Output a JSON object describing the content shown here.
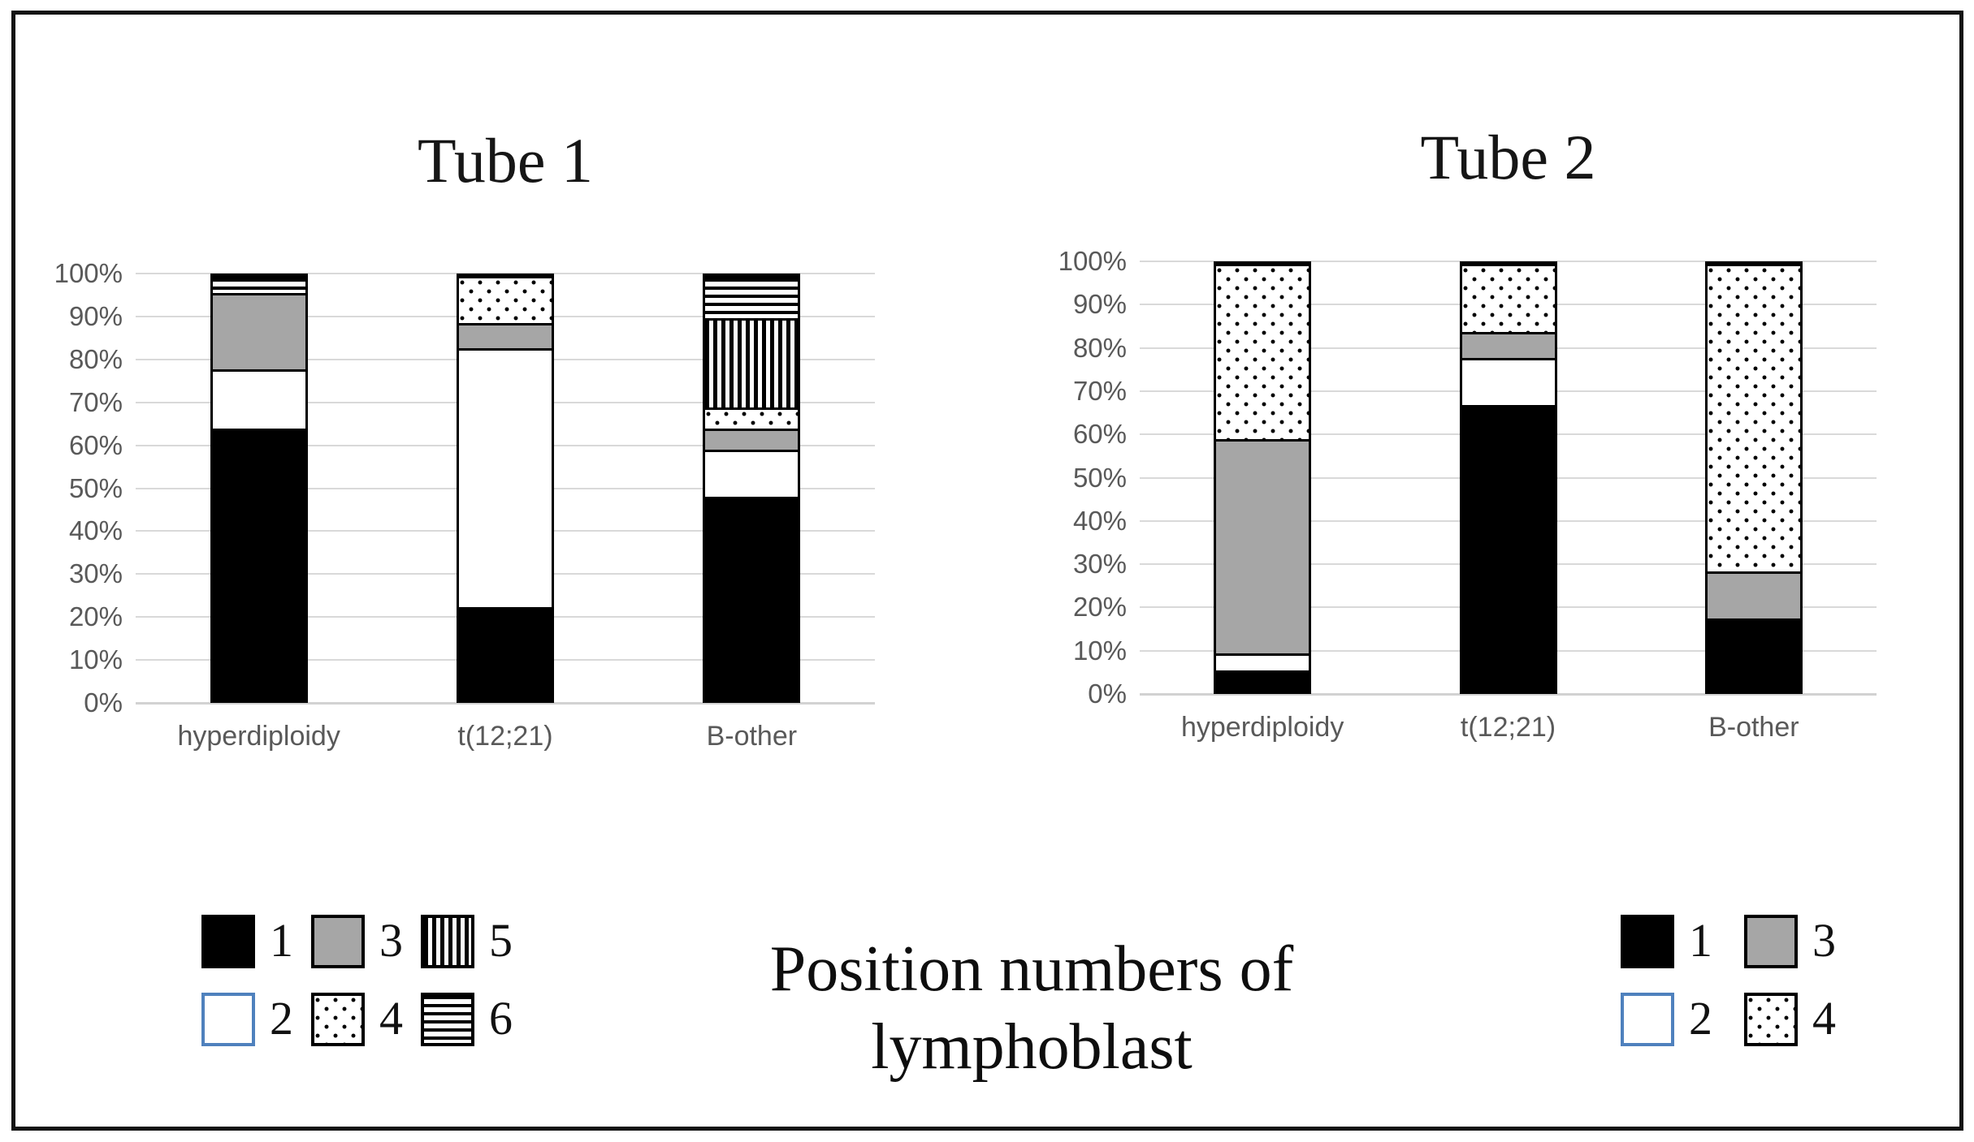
{
  "figure": {
    "caption": "Position numbers of\nlymphoblast"
  },
  "colors": {
    "bar_outline": "#000000",
    "gray_fill": "#a6a6a6",
    "gridline": "#d9d9d9",
    "axis_text": "#595959",
    "legend_white_swatch_border": "#4f81bd",
    "frame_border": "#141414"
  },
  "chart_data": [
    {
      "type": "bar",
      "stacked": true,
      "title": "Tube 1",
      "categories": [
        "hyperdiploidy",
        "t(12;21)",
        "B-other"
      ],
      "series": [
        {
          "name": "1",
          "pattern": "black",
          "values": [
            64,
            22,
            48
          ]
        },
        {
          "name": "2",
          "pattern": "white",
          "values": [
            14,
            61,
            11
          ]
        },
        {
          "name": "3",
          "pattern": "gray",
          "values": [
            18,
            6,
            5
          ]
        },
        {
          "name": "4",
          "pattern": "dots",
          "values": [
            0,
            11,
            5
          ]
        },
        {
          "name": "5",
          "pattern": "vstripes",
          "values": [
            0,
            0,
            21
          ]
        },
        {
          "name": "6",
          "pattern": "hstripes",
          "values": [
            4,
            0,
            10
          ]
        }
      ],
      "ylabel": "",
      "ylim": [
        0,
        100
      ],
      "yticks": [
        "0%",
        "10%",
        "20%",
        "30%",
        "40%",
        "50%",
        "60%",
        "70%",
        "80%",
        "90%",
        "100%"
      ],
      "grid": true,
      "legend_position": "bottom-left",
      "legend_labels": [
        "1",
        "2",
        "3",
        "4",
        "5",
        "6"
      ]
    },
    {
      "type": "bar",
      "stacked": true,
      "title": "Tube 2",
      "categories": [
        "hyperdiploidy",
        "t(12;21)",
        "B-other"
      ],
      "series": [
        {
          "name": "1",
          "pattern": "black",
          "values": [
            5,
            67,
            17
          ]
        },
        {
          "name": "2",
          "pattern": "white",
          "values": [
            4,
            11,
            0
          ]
        },
        {
          "name": "3",
          "pattern": "gray",
          "values": [
            50,
            6,
            11
          ]
        },
        {
          "name": "4",
          "pattern": "dots",
          "values": [
            41,
            16,
            72
          ]
        }
      ],
      "ylabel": "",
      "ylim": [
        0,
        100
      ],
      "yticks": [
        "0%",
        "10%",
        "20%",
        "30%",
        "40%",
        "50%",
        "60%",
        "70%",
        "80%",
        "90%",
        "100%"
      ],
      "grid": true,
      "legend_position": "bottom-right",
      "legend_labels": [
        "1",
        "2",
        "3",
        "4"
      ]
    }
  ]
}
